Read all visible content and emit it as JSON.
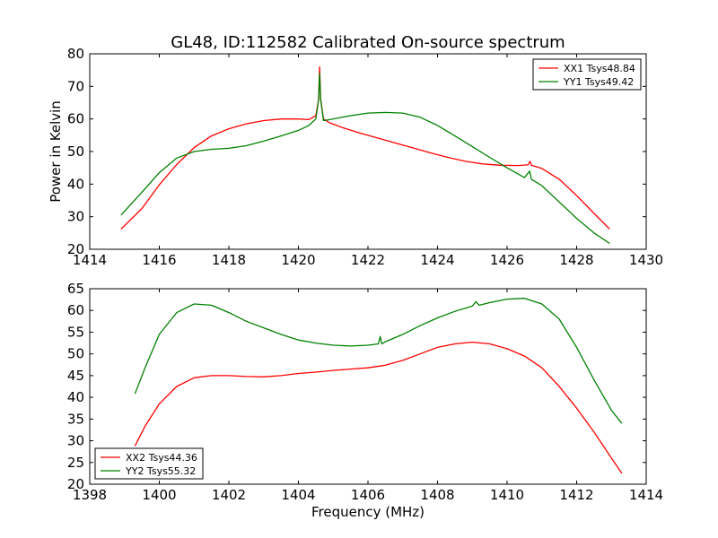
{
  "title": "GL48, ID:112582 Calibrated On-source spectrum",
  "chart_data": [
    {
      "type": "line",
      "ylabel": "Power in Kelvin",
      "xlabel": "",
      "xlim": [
        1414,
        1430
      ],
      "ylim": [
        20,
        80
      ],
      "xticks": [
        1414,
        1416,
        1418,
        1420,
        1422,
        1424,
        1426,
        1428,
        1430
      ],
      "yticks": [
        20,
        30,
        40,
        50,
        60,
        70,
        80
      ],
      "legend_position": "top-right",
      "grid": false,
      "series": [
        {
          "name": "XX1 Tsys48.84",
          "color": "#ff0000",
          "x": [
            1414.9,
            1415.5,
            1416.0,
            1416.5,
            1417.0,
            1417.5,
            1418.0,
            1418.5,
            1419.0,
            1419.5,
            1420.0,
            1420.3,
            1420.5,
            1420.58,
            1420.61,
            1420.64,
            1420.72,
            1420.9,
            1421.3,
            1421.8,
            1422.3,
            1422.8,
            1423.3,
            1423.8,
            1424.3,
            1424.8,
            1425.3,
            1425.8,
            1426.3,
            1426.6,
            1426.66,
            1426.7,
            1427.0,
            1427.5,
            1428.0,
            1428.5,
            1428.95
          ],
          "y": [
            26.2,
            32.5,
            39.8,
            46.0,
            51.2,
            54.8,
            57.0,
            58.5,
            59.5,
            60.0,
            60.0,
            59.8,
            61.0,
            66.0,
            76.0,
            66.0,
            60.0,
            58.8,
            57.2,
            55.6,
            54.1,
            52.6,
            51.1,
            49.6,
            48.2,
            47.0,
            46.2,
            45.8,
            45.7,
            45.9,
            47.0,
            45.8,
            44.8,
            41.5,
            36.5,
            31.0,
            26.2
          ]
        },
        {
          "name": "YY1 Tsys49.42",
          "color": "#008000",
          "x": [
            1414.9,
            1415.5,
            1416.0,
            1416.5,
            1417.0,
            1417.5,
            1418.0,
            1418.5,
            1419.0,
            1419.5,
            1420.0,
            1420.3,
            1420.5,
            1420.58,
            1420.61,
            1420.64,
            1420.72,
            1420.9,
            1421.5,
            1422.0,
            1422.5,
            1423.0,
            1423.5,
            1424.0,
            1424.5,
            1425.0,
            1425.5,
            1426.0,
            1426.5,
            1426.65,
            1426.7,
            1427.0,
            1427.5,
            1428.0,
            1428.5,
            1428.95
          ],
          "y": [
            30.5,
            37.5,
            43.5,
            48.0,
            50.0,
            50.7,
            51.0,
            51.8,
            53.2,
            54.8,
            56.5,
            58.0,
            60.0,
            66.0,
            74.0,
            66.0,
            59.5,
            59.8,
            61.0,
            61.8,
            62.0,
            61.8,
            60.5,
            58.0,
            54.8,
            51.5,
            48.2,
            45.0,
            42.0,
            44.0,
            41.5,
            39.5,
            34.5,
            29.5,
            25.0,
            21.8
          ]
        }
      ]
    },
    {
      "type": "line",
      "ylabel": "",
      "xlabel": "Frequency (MHz)",
      "xlim": [
        1398,
        1414
      ],
      "ylim": [
        20,
        65
      ],
      "xticks": [
        1398,
        1400,
        1402,
        1404,
        1406,
        1408,
        1410,
        1412,
        1414
      ],
      "yticks": [
        20,
        25,
        30,
        35,
        40,
        45,
        50,
        55,
        60,
        65
      ],
      "legend_position": "bottom-left",
      "grid": false,
      "series": [
        {
          "name": "XX2 Tsys44.36",
          "color": "#ff0000",
          "x": [
            1399.3,
            1399.6,
            1400.0,
            1400.5,
            1401.0,
            1401.5,
            1402.0,
            1402.5,
            1403.0,
            1403.5,
            1404.0,
            1404.5,
            1405.0,
            1405.5,
            1406.0,
            1406.5,
            1407.0,
            1407.5,
            1408.0,
            1408.5,
            1409.0,
            1409.5,
            1410.0,
            1410.5,
            1411.0,
            1411.5,
            1412.0,
            1412.5,
            1413.0,
            1413.3
          ],
          "y": [
            28.8,
            33.5,
            38.5,
            42.5,
            44.5,
            45.0,
            45.0,
            44.8,
            44.7,
            45.0,
            45.5,
            45.8,
            46.2,
            46.5,
            46.8,
            47.4,
            48.5,
            50.0,
            51.5,
            52.3,
            52.7,
            52.3,
            51.2,
            49.5,
            46.8,
            42.5,
            37.5,
            32.0,
            26.0,
            22.5
          ]
        },
        {
          "name": "YY2 Tsys55.32",
          "color": "#008000",
          "x": [
            1399.3,
            1399.6,
            1400.0,
            1400.5,
            1401.0,
            1401.5,
            1402.0,
            1402.5,
            1403.0,
            1403.5,
            1404.0,
            1404.5,
            1405.0,
            1405.5,
            1406.0,
            1406.3,
            1406.35,
            1406.4,
            1406.5,
            1407.0,
            1407.5,
            1408.0,
            1408.5,
            1409.0,
            1409.1,
            1409.2,
            1409.5,
            1410.0,
            1410.5,
            1411.0,
            1411.5,
            1412.0,
            1412.5,
            1413.0,
            1413.3
          ],
          "y": [
            40.8,
            47.0,
            54.5,
            59.5,
            61.5,
            61.2,
            59.5,
            57.5,
            56.0,
            54.5,
            53.2,
            52.5,
            52.0,
            51.8,
            52.0,
            52.3,
            54.0,
            52.3,
            52.8,
            54.5,
            56.5,
            58.3,
            59.8,
            61.0,
            62.0,
            61.2,
            61.8,
            62.6,
            62.8,
            61.5,
            58.0,
            51.5,
            44.0,
            37.0,
            34.0
          ]
        }
      ]
    }
  ]
}
